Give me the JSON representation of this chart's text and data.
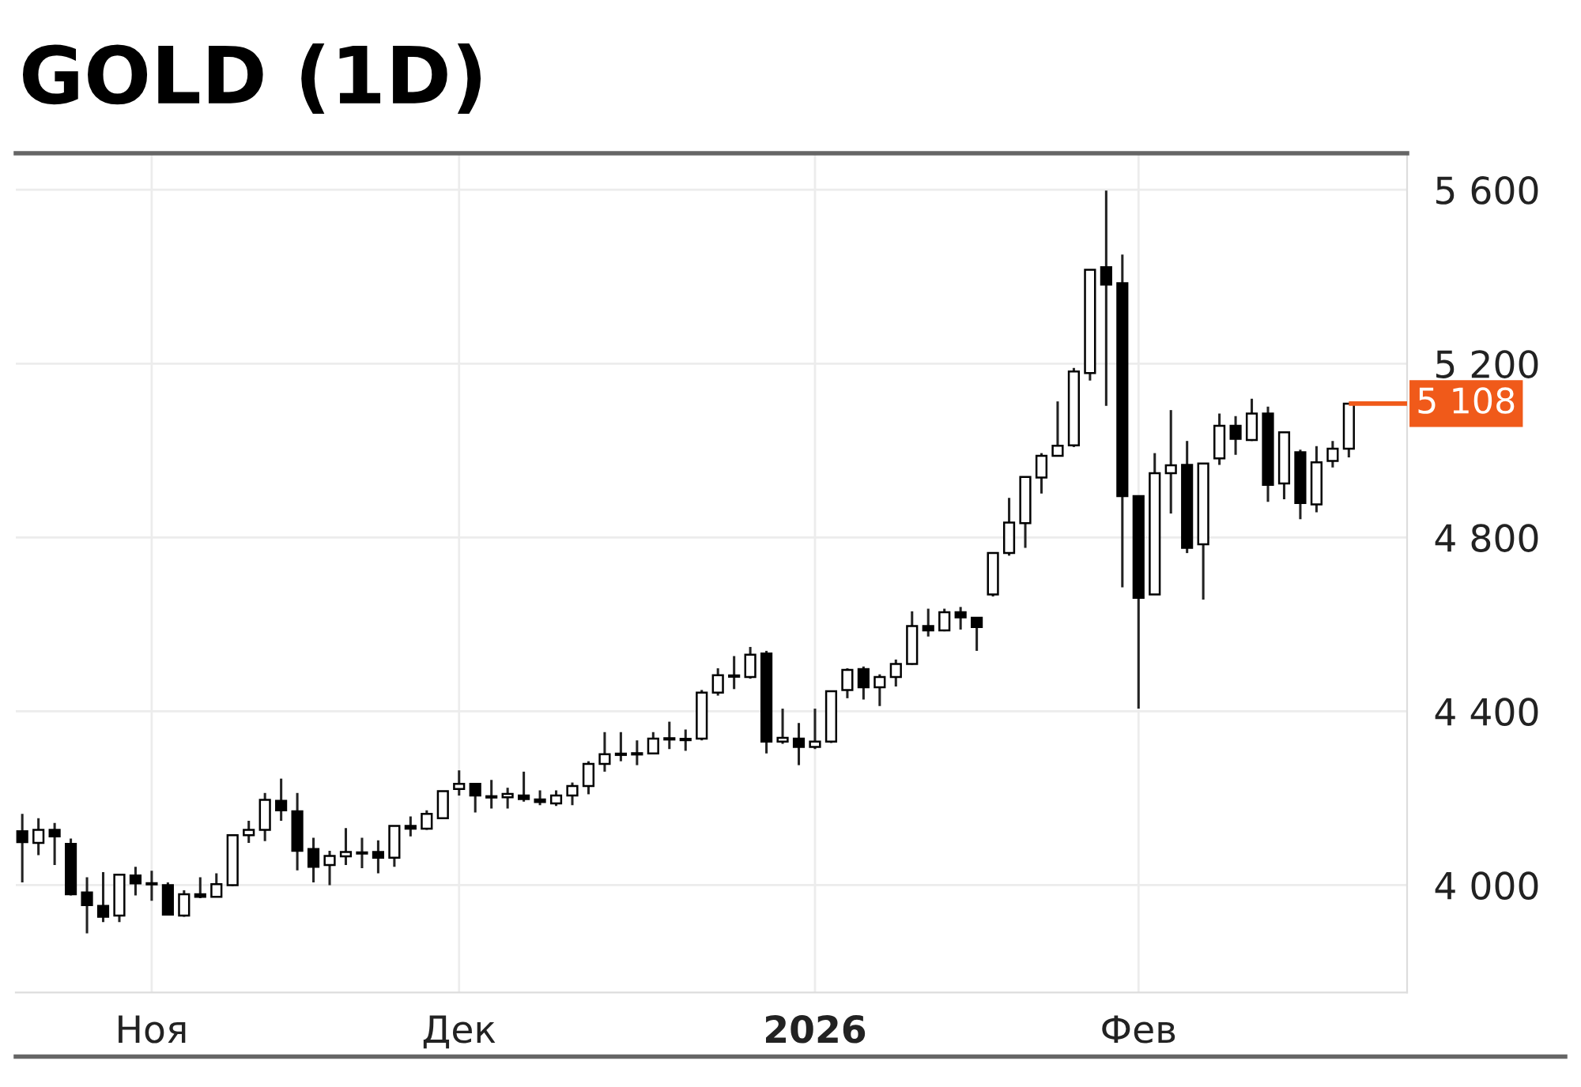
{
  "chart_data": {
    "type": "candlestick",
    "title": "GOLD (1D)",
    "categories": [
      null,
      null,
      null,
      null,
      null,
      null,
      null,
      null,
      "Ноя",
      null,
      null,
      null,
      null,
      null,
      null,
      null,
      null,
      null,
      null,
      null,
      null,
      null,
      null,
      null,
      null,
      null,
      null,
      "Дек",
      null,
      null,
      null,
      null,
      null,
      null,
      null,
      null,
      null,
      null,
      null,
      null,
      null,
      null,
      null,
      null,
      null,
      null,
      null,
      null,
      null,
      "2026",
      null,
      null,
      null,
      null,
      null,
      null,
      null,
      null,
      null,
      null,
      null,
      null,
      null,
      null,
      null,
      null,
      null,
      null,
      null,
      "Фев",
      null,
      null,
      null,
      null,
      null,
      null,
      null,
      null,
      null,
      null,
      null,
      null,
      null
    ],
    "ohlc": [
      [
        4124,
        4164,
        4006,
        4099
      ],
      [
        4097,
        4154,
        4069,
        4127
      ],
      [
        4127,
        4143,
        4046,
        4112
      ],
      [
        4095,
        4107,
        3976,
        3979
      ],
      [
        3983,
        4018,
        3889,
        3954
      ],
      [
        3952,
        4030,
        3915,
        3927
      ],
      [
        3930,
        4024,
        3915,
        4024
      ],
      [
        4022,
        4042,
        3976,
        4004
      ],
      [
        4003,
        4033,
        3964,
        4005
      ],
      [
        4000,
        4006,
        3930,
        3932
      ],
      [
        3930,
        3988,
        3927,
        3979
      ],
      [
        3979,
        4018,
        3970,
        3973
      ],
      [
        3973,
        4027,
        3972,
        4002
      ],
      [
        4000,
        4115,
        3998,
        4115
      ],
      [
        4115,
        4148,
        4097,
        4127
      ],
      [
        4127,
        4212,
        4101,
        4196
      ],
      [
        4194,
        4245,
        4148,
        4172
      ],
      [
        4170,
        4212,
        4034,
        4079
      ],
      [
        4083,
        4109,
        4006,
        4042
      ],
      [
        4046,
        4079,
        4000,
        4067
      ],
      [
        4066,
        4131,
        4046,
        4076
      ],
      [
        4074,
        4109,
        4039,
        4076
      ],
      [
        4076,
        4103,
        4027,
        4063
      ],
      [
        4063,
        4136,
        4042,
        4136
      ],
      [
        4136,
        4158,
        4112,
        4130
      ],
      [
        4130,
        4172,
        4127,
        4164
      ],
      [
        4154,
        4216,
        4152,
        4216
      ],
      [
        4221,
        4264,
        4206,
        4233
      ],
      [
        4233,
        4233,
        4167,
        4206
      ],
      [
        4204,
        4242,
        4176,
        4203
      ],
      [
        4202,
        4224,
        4176,
        4210
      ],
      [
        4206,
        4261,
        4192,
        4198
      ],
      [
        4197,
        4218,
        4184,
        4191
      ],
      [
        4188,
        4218,
        4182,
        4206
      ],
      [
        4206,
        4236,
        4184,
        4228
      ],
      [
        4228,
        4285,
        4209,
        4279
      ],
      [
        4279,
        4352,
        4261,
        4301
      ],
      [
        4301,
        4352,
        4285,
        4303
      ],
      [
        4303,
        4333,
        4276,
        4302
      ],
      [
        4303,
        4352,
        4301,
        4337
      ],
      [
        4338,
        4376,
        4313,
        4335
      ],
      [
        4335,
        4358,
        4309,
        4337
      ],
      [
        4337,
        4449,
        4333,
        4443
      ],
      [
        4443,
        4499,
        4436,
        4483
      ],
      [
        4481,
        4527,
        4451,
        4482
      ],
      [
        4479,
        4548,
        4475,
        4530
      ],
      [
        4533,
        4539,
        4303,
        4330
      ],
      [
        4330,
        4406,
        4325,
        4339
      ],
      [
        4337,
        4373,
        4276,
        4318
      ],
      [
        4318,
        4406,
        4313,
        4330
      ],
      [
        4330,
        4446,
        4327,
        4446
      ],
      [
        4449,
        4499,
        4430,
        4495
      ],
      [
        4497,
        4503,
        4427,
        4455
      ],
      [
        4455,
        4485,
        4412,
        4479
      ],
      [
        4479,
        4519,
        4457,
        4509
      ],
      [
        4509,
        4630,
        4507,
        4596
      ],
      [
        4596,
        4636,
        4572,
        4586
      ],
      [
        4586,
        4636,
        4584,
        4628
      ],
      [
        4628,
        4640,
        4588,
        4616
      ],
      [
        4615,
        4615,
        4539,
        4594
      ],
      [
        4669,
        4766,
        4664,
        4764
      ],
      [
        4764,
        4891,
        4758,
        4834
      ],
      [
        4833,
        4939,
        4776,
        4939
      ],
      [
        4938,
        4994,
        4901,
        4988
      ],
      [
        4988,
        5113,
        4988,
        5011
      ],
      [
        5012,
        5190,
        5008,
        5182
      ],
      [
        5178,
        5416,
        5161,
        5416
      ],
      [
        5422,
        5598,
        5103,
        5382
      ],
      [
        5385,
        5451,
        4685,
        4895
      ],
      [
        4895,
        4895,
        4406,
        4661
      ],
      [
        4669,
        4994,
        4669,
        4948
      ],
      [
        4948,
        5093,
        4855,
        4966
      ],
      [
        4967,
        5022,
        4764,
        4776
      ],
      [
        4784,
        4970,
        4657,
        4970
      ],
      [
        4982,
        5085,
        4967,
        5057
      ],
      [
        5057,
        5079,
        4990,
        5027
      ],
      [
        5024,
        5119,
        5022,
        5085
      ],
      [
        5085,
        5101,
        4882,
        4921
      ],
      [
        4924,
        5042,
        4888,
        5042
      ],
      [
        4996,
        5002,
        4842,
        4879
      ],
      [
        4876,
        5010,
        4858,
        4973
      ],
      [
        4976,
        5022,
        4961,
        5004
      ],
      [
        5004,
        5109,
        4984,
        5108
      ]
    ],
    "ylim": [
      3753,
      5684
    ],
    "yticks": [
      {
        "value": 4000,
        "label": "4 000"
      },
      {
        "value": 4400,
        "label": "4 400"
      },
      {
        "value": 4800,
        "label": "4 800"
      },
      {
        "value": 5200,
        "label": "5 200"
      },
      {
        "value": 5600,
        "label": "5 600"
      }
    ],
    "ref_lines": [
      {
        "axis": "y",
        "value": 5108,
        "label": "5 108",
        "color": "#f05a1a"
      }
    ],
    "grid": true
  }
}
